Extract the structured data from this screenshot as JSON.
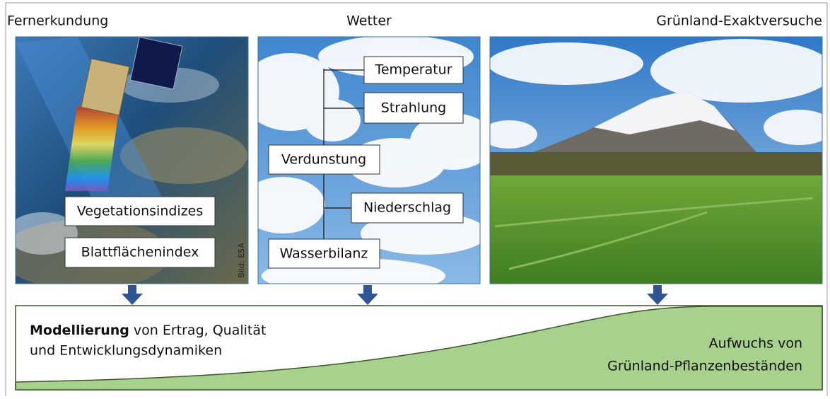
{
  "panels": [
    {
      "title": "Fernerkundung",
      "labels": [
        "Vegetationsindizes",
        "Blattflächenindex"
      ],
      "credit": "Bild: ESA"
    },
    {
      "title": "Wetter",
      "labels": [
        "Temperatur",
        "Strahlung",
        "Verdunstung",
        "Niederschlag",
        "Wasserbilanz"
      ]
    },
    {
      "title": "Grünland-Exaktversuche"
    }
  ],
  "model": {
    "bold": "Modellierung",
    "line1": "von Ertrag, Qualität",
    "line2": "und Entwicklungsdynamiken",
    "growth": [
      "Aufwuchs von",
      "Grünland-Pflanzenbeständen"
    ]
  }
}
